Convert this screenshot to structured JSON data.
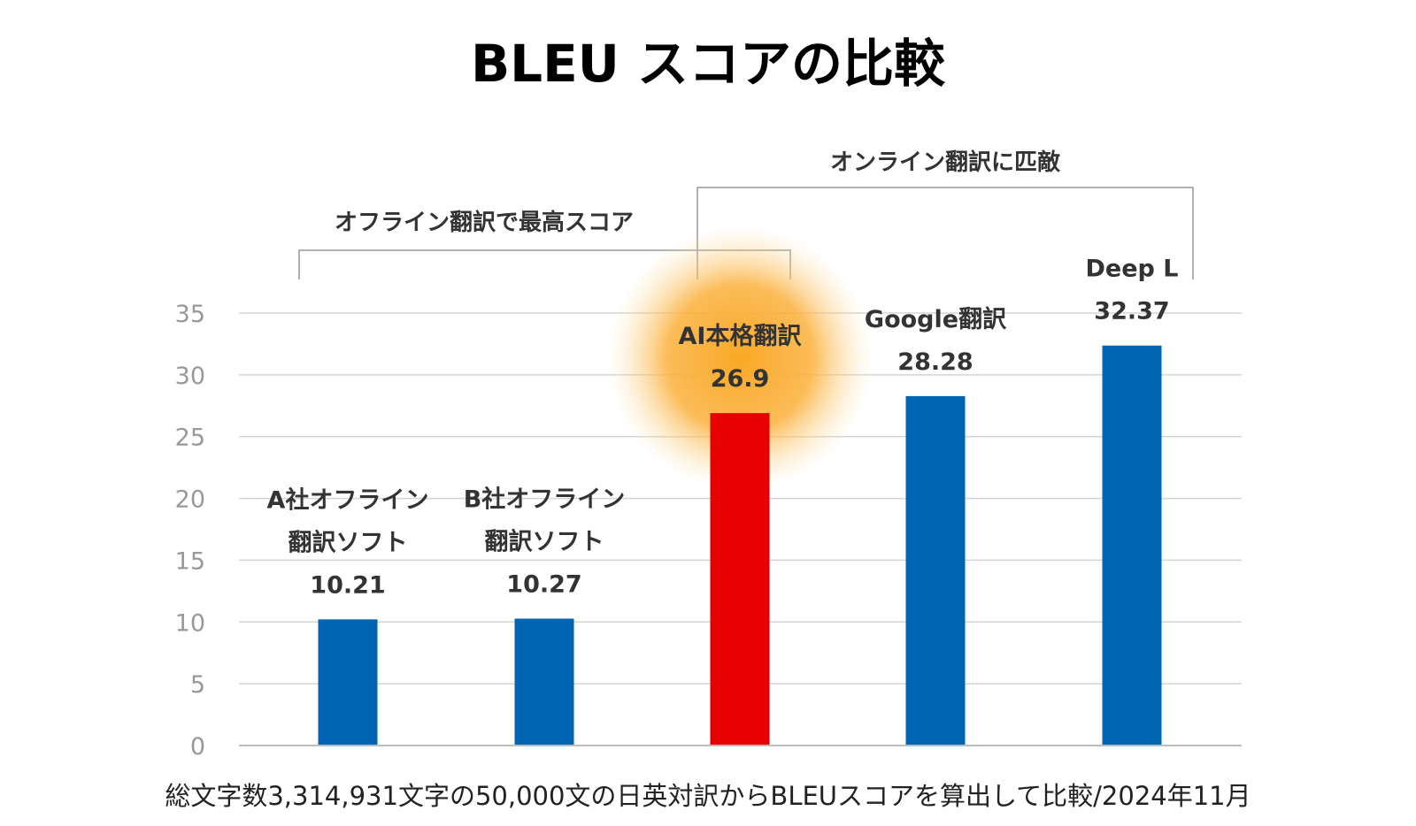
{
  "title": "BLEU スコアの比較",
  "footnote": "総文字数3,314,931文字の50,000文の日英対訳からBLEUスコアを算出して比較/2024年11月",
  "annotations": {
    "offline": "オフライン翻訳で最高スコア",
    "online": "オンライン翻訳に匹敵"
  },
  "colors": {
    "bar_default": "#0066b3",
    "bar_highlight": "#e60000",
    "glow": "#f9a825"
  },
  "chart_data": {
    "type": "bar",
    "title": "BLEU スコアの比較",
    "categories": [
      [
        "A社オフライン",
        "翻訳ソフト"
      ],
      [
        "B社オフライン",
        "翻訳ソフト"
      ],
      [
        "AI本格翻訳"
      ],
      [
        "Google翻訳"
      ],
      [
        "Deep L"
      ]
    ],
    "values": [
      10.21,
      10.27,
      26.9,
      28.28,
      32.37
    ],
    "value_labels": [
      "10.21",
      "10.27",
      "26.9",
      "28.28",
      "32.37"
    ],
    "highlight_index": 2,
    "ylim": [
      0,
      35
    ],
    "yticks": [
      "0",
      "5",
      "10",
      "15",
      "20",
      "25",
      "30",
      "35"
    ],
    "grid": true,
    "legend": "none",
    "xlabel": "",
    "ylabel": ""
  }
}
